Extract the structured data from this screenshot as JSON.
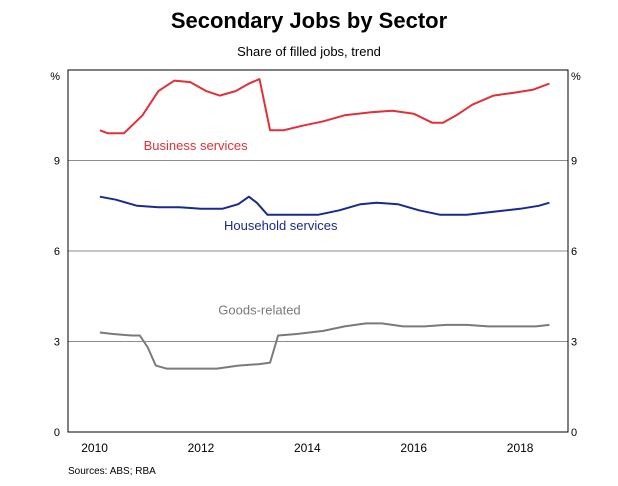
{
  "chart_data": {
    "type": "line",
    "title": "Secondary Jobs by Sector",
    "subtitle": "Share of filled jobs, trend",
    "y_unit_left": "%",
    "y_unit_right": "%",
    "ylim": [
      0,
      12
    ],
    "yticks": [
      0,
      3,
      6,
      9
    ],
    "ytick_labels": [
      "0",
      "3",
      "6",
      "9"
    ],
    "xlim": [
      2009.5,
      2018.9
    ],
    "xticks": [
      2010,
      2012,
      2014,
      2016,
      2018
    ],
    "xtick_labels": [
      "2010",
      "2012",
      "2014",
      "2016",
      "2018"
    ],
    "grid": true,
    "source": "Sources: ABS; RBA",
    "colors": {
      "business": "#e0303a",
      "household": "#1a2a8c",
      "goods": "#7a7a7a"
    },
    "series": [
      {
        "name": "Business services",
        "color": "#e0303a",
        "points": [
          [
            2010.1,
            10.0
          ],
          [
            2010.25,
            9.9
          ],
          [
            2010.55,
            9.9
          ],
          [
            2010.9,
            10.5
          ],
          [
            2011.2,
            11.3
          ],
          [
            2011.5,
            11.65
          ],
          [
            2011.8,
            11.6
          ],
          [
            2012.1,
            11.3
          ],
          [
            2012.35,
            11.15
          ],
          [
            2012.65,
            11.3
          ],
          [
            2012.9,
            11.55
          ],
          [
            2013.1,
            11.7
          ],
          [
            2013.3,
            10.0
          ],
          [
            2013.55,
            10.0
          ],
          [
            2013.9,
            10.15
          ],
          [
            2014.3,
            10.3
          ],
          [
            2014.7,
            10.5
          ],
          [
            2015.2,
            10.6
          ],
          [
            2015.6,
            10.65
          ],
          [
            2016.0,
            10.55
          ],
          [
            2016.35,
            10.25
          ],
          [
            2016.55,
            10.25
          ],
          [
            2016.8,
            10.5
          ],
          [
            2017.1,
            10.85
          ],
          [
            2017.5,
            11.15
          ],
          [
            2017.9,
            11.25
          ],
          [
            2018.25,
            11.35
          ],
          [
            2018.55,
            11.55
          ]
        ]
      },
      {
        "name": "Household services",
        "color": "#1a2a8c",
        "points": [
          [
            2010.1,
            7.8
          ],
          [
            2010.4,
            7.7
          ],
          [
            2010.8,
            7.5
          ],
          [
            2011.2,
            7.45
          ],
          [
            2011.6,
            7.45
          ],
          [
            2012.0,
            7.4
          ],
          [
            2012.4,
            7.4
          ],
          [
            2012.7,
            7.55
          ],
          [
            2012.9,
            7.8
          ],
          [
            2013.05,
            7.6
          ],
          [
            2013.25,
            7.2
          ],
          [
            2013.5,
            7.2
          ],
          [
            2013.8,
            7.2
          ],
          [
            2014.2,
            7.2
          ],
          [
            2014.6,
            7.35
          ],
          [
            2015.0,
            7.55
          ],
          [
            2015.3,
            7.6
          ],
          [
            2015.7,
            7.55
          ],
          [
            2016.1,
            7.35
          ],
          [
            2016.5,
            7.2
          ],
          [
            2017.0,
            7.2
          ],
          [
            2017.5,
            7.3
          ],
          [
            2018.0,
            7.4
          ],
          [
            2018.35,
            7.5
          ],
          [
            2018.55,
            7.6
          ]
        ]
      },
      {
        "name": "Goods-related",
        "color": "#7a7a7a",
        "points": [
          [
            2010.1,
            3.3
          ],
          [
            2010.35,
            3.25
          ],
          [
            2010.7,
            3.2
          ],
          [
            2010.85,
            3.2
          ],
          [
            2011.0,
            2.8
          ],
          [
            2011.15,
            2.2
          ],
          [
            2011.35,
            2.1
          ],
          [
            2011.8,
            2.1
          ],
          [
            2012.3,
            2.1
          ],
          [
            2012.7,
            2.2
          ],
          [
            2013.1,
            2.25
          ],
          [
            2013.3,
            2.3
          ],
          [
            2013.45,
            3.2
          ],
          [
            2013.8,
            3.25
          ],
          [
            2014.3,
            3.35
          ],
          [
            2014.7,
            3.5
          ],
          [
            2015.1,
            3.6
          ],
          [
            2015.4,
            3.6
          ],
          [
            2015.8,
            3.5
          ],
          [
            2016.2,
            3.5
          ],
          [
            2016.6,
            3.55
          ],
          [
            2017.0,
            3.55
          ],
          [
            2017.4,
            3.5
          ],
          [
            2017.9,
            3.5
          ],
          [
            2018.3,
            3.5
          ],
          [
            2018.55,
            3.55
          ]
        ]
      }
    ]
  }
}
